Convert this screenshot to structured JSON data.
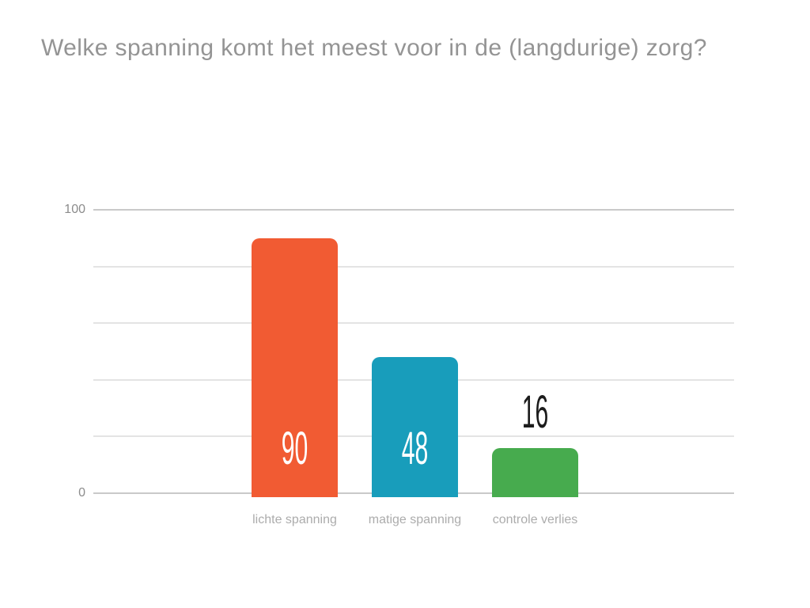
{
  "slide": {
    "background_color": "#ffffff"
  },
  "chart_data": {
    "type": "bar",
    "title": "Welke spanning komt het meest voor in de (langdurige) zorg?",
    "title_color": "#949494",
    "categories": [
      "lichte spanning",
      "matige spanning",
      "controle verlies"
    ],
    "values": [
      90,
      48,
      16
    ],
    "bar_colors": [
      "#f15b33",
      "#189dbb",
      "#47ab4e"
    ],
    "value_label_colors": {
      "inside": "#ffffff",
      "outside": "#1c1c1c"
    },
    "xlabel": "",
    "ylabel": "",
    "ylim": [
      0,
      100
    ],
    "ytick_labels": [
      "100",
      "0"
    ],
    "gridline_values": [
      100,
      80,
      60,
      40,
      20,
      0
    ],
    "grid": true,
    "legend": "none"
  }
}
